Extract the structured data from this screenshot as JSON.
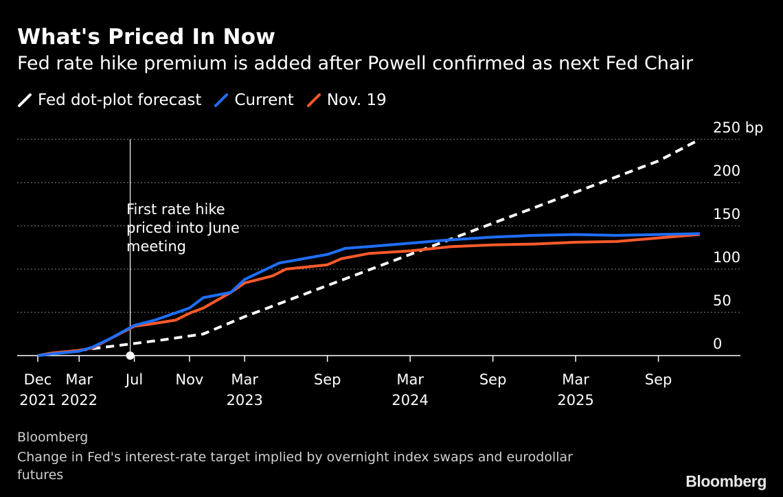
{
  "chart_data": {
    "type": "line",
    "title": "What's Priced In Now",
    "subtitle": "Fed rate hike premium is added after Powell confirmed as next Fed Chair",
    "ylabel_unit": "bp",
    "ylim": [
      0,
      250
    ],
    "yticks": [
      0,
      50,
      100,
      150,
      200,
      250
    ],
    "ytick_labels": [
      "0",
      "50",
      "100",
      "150",
      "200",
      "250 bp"
    ],
    "xlim": [
      "2021-12",
      "2025-12"
    ],
    "xticks": [
      {
        "month": 0,
        "label": "Dec",
        "year": "2021"
      },
      {
        "month": 3,
        "label": "Mar",
        "year": "2022"
      },
      {
        "month": 7,
        "label": "Jul",
        "year": ""
      },
      {
        "month": 11,
        "label": "Nov",
        "year": ""
      },
      {
        "month": 15,
        "label": "Mar",
        "year": "2023"
      },
      {
        "month": 21,
        "label": "Sep",
        "year": ""
      },
      {
        "month": 27,
        "label": "Mar",
        "year": "2024"
      },
      {
        "month": 33,
        "label": "Sep",
        "year": ""
      },
      {
        "month": 39,
        "label": "Mar",
        "year": "2025"
      },
      {
        "month": 45,
        "label": "Sep",
        "year": ""
      }
    ],
    "grid": true,
    "legend_position": "top-left",
    "series": [
      {
        "name": "Fed dot-plot forecast",
        "color": "#ffffff",
        "dash": true,
        "x": [
          0,
          3,
          6,
          9,
          12,
          15,
          18,
          21,
          24,
          27,
          30,
          33,
          36,
          39,
          42,
          45,
          48
        ],
        "values": [
          0,
          6,
          12,
          18,
          25,
          45,
          63,
          81,
          99,
          117,
          135,
          153,
          171,
          189,
          207,
          225,
          250
        ]
      },
      {
        "name": "Current",
        "color": "#1f6fff",
        "dash": false,
        "x": [
          0,
          1,
          3,
          4,
          5.3,
          7,
          8.5,
          11,
          12,
          14,
          15,
          17.5,
          21,
          22.3,
          24,
          27,
          30,
          33,
          36,
          39,
          42,
          45,
          48
        ],
        "values": [
          0,
          2,
          5,
          10,
          20,
          35,
          41,
          55,
          67,
          73,
          88,
          107,
          117,
          124,
          126,
          130,
          134,
          137,
          139,
          140,
          139,
          140,
          141
        ]
      },
      {
        "name": "Nov. 19",
        "color": "#ff5a2b",
        "dash": false,
        "x": [
          0,
          1,
          3,
          4,
          5.3,
          7,
          8,
          10,
          11,
          12,
          14,
          15,
          17,
          18,
          21,
          22,
          24,
          27,
          30,
          33,
          36,
          39,
          42,
          45,
          48
        ],
        "values": [
          0,
          3,
          6,
          9,
          20,
          34,
          36,
          41,
          49,
          55,
          73,
          84,
          92,
          100,
          105,
          112,
          118,
          121,
          126,
          128,
          129,
          131,
          132,
          136,
          140
        ]
      }
    ],
    "annotation": {
      "month": 6.7,
      "lines": [
        "First rate hike",
        "priced into June",
        "meeting"
      ]
    }
  },
  "source": "Bloomberg",
  "note": "Change in Fed's interest-rate target implied by overnight index swaps and eurodollar futures",
  "logo": "Bloomberg"
}
